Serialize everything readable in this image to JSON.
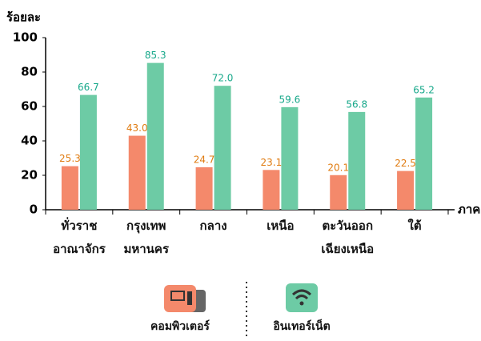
{
  "chart_data": {
    "type": "bar",
    "ylabel": "ร้อยละ",
    "xlabel": "ภาค",
    "categories": [
      "ทั่วราช\nอาณาจักร",
      "กรุงเทพ\nมหานคร",
      "กลาง",
      "เหนือ",
      "ตะวันออก\nเฉียงเหนือ",
      "ใต้"
    ],
    "series": [
      {
        "name": "คอมพิวเตอร์",
        "color": "#f4896b",
        "label_color": "#e07b10",
        "values": [
          25.3,
          43.0,
          24.7,
          23.1,
          20.1,
          22.5
        ],
        "value_labels": [
          "25.3",
          "43.0",
          "24.7",
          "23.1",
          "20.1",
          "22.5"
        ]
      },
      {
        "name": "อินเทอร์เน็ต",
        "color": "#6dcba5",
        "label_color": "#17a88a",
        "values": [
          66.7,
          85.3,
          72.0,
          59.6,
          56.8,
          65.2
        ],
        "value_labels": [
          "66.7",
          "85.3",
          "72.0",
          "59.6",
          "56.8",
          "65.2"
        ]
      }
    ],
    "ylim": [
      0,
      100
    ],
    "yticks": [
      0,
      20,
      40,
      60,
      80,
      100
    ]
  }
}
